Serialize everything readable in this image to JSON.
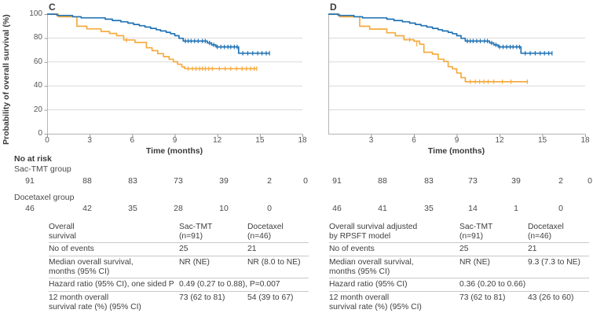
{
  "figure": {
    "y_axis_label": "Probability of overall survival (%)",
    "x_axis_label": "Time (months)",
    "colors": {
      "sac_tmt_line": "#2173b5",
      "docetaxel_line": "#f6ab3f",
      "gridline": "#dadada",
      "axis": "#b5b5b5",
      "tick_text": "#555555",
      "table_rule": "#c9c9c9"
    }
  },
  "chart_data": [
    {
      "type": "line",
      "subtype": "kaplan-meier-step",
      "panel": "C",
      "ylabel": "Probability of overall survival (%)",
      "xlabel": "Time (months)",
      "ylim": [
        0,
        100
      ],
      "xlim": [
        0,
        18
      ],
      "yticks": [
        100,
        80,
        60,
        40,
        20,
        0
      ],
      "xticks": [
        0,
        3,
        6,
        9,
        12,
        15,
        18
      ],
      "grid": "horizontal",
      "series": [
        {
          "name": "Sac-TMT",
          "color": "#2173b5",
          "steps": [
            [
              0,
              100
            ],
            [
              0.7,
              98.9
            ],
            [
              1.8,
              97.8
            ],
            [
              2.4,
              96.9
            ],
            [
              4.1,
              95.8
            ],
            [
              4.6,
              94.7
            ],
            [
              5.2,
              93.6
            ],
            [
              5.7,
              92.5
            ],
            [
              6.1,
              91.4
            ],
            [
              6.5,
              90.3
            ],
            [
              6.9,
              89.2
            ],
            [
              7.3,
              88.1
            ],
            [
              7.7,
              87.0
            ],
            [
              8.0,
              85.9
            ],
            [
              8.4,
              84.8
            ],
            [
              8.7,
              83.7
            ],
            [
              9.0,
              82.0
            ],
            [
              9.3,
              79.8
            ],
            [
              9.6,
              77.5
            ],
            [
              11.3,
              75.9
            ],
            [
              11.6,
              74.3
            ],
            [
              11.9,
              72.6
            ],
            [
              13.5,
              67.3
            ],
            [
              15.7,
              67.3
            ]
          ],
          "censors": [
            [
              9.75,
              77.5
            ],
            [
              9.95,
              77.5
            ],
            [
              10.15,
              77.5
            ],
            [
              10.4,
              77.5
            ],
            [
              10.65,
              77.5
            ],
            [
              10.95,
              77.5
            ],
            [
              11.15,
              77.5
            ],
            [
              11.45,
              75.9
            ],
            [
              11.75,
              74.3
            ],
            [
              12.0,
              72.6
            ],
            [
              12.25,
              72.6
            ],
            [
              12.5,
              72.6
            ],
            [
              12.75,
              72.6
            ],
            [
              12.95,
              72.6
            ],
            [
              13.2,
              72.6
            ],
            [
              13.4,
              72.6
            ],
            [
              13.8,
              67.3
            ],
            [
              14.15,
              67.3
            ],
            [
              14.5,
              67.3
            ],
            [
              14.85,
              67.3
            ],
            [
              15.15,
              67.3
            ],
            [
              15.45,
              67.3
            ],
            [
              15.68,
              67.3
            ]
          ]
        },
        {
          "name": "Docetaxel",
          "color": "#f6ab3f",
          "steps": [
            [
              0,
              100
            ],
            [
              0.8,
              97.8
            ],
            [
              2.1,
              89.9
            ],
            [
              2.8,
              87.7
            ],
            [
              3.8,
              85.5
            ],
            [
              4.4,
              83.9
            ],
            [
              4.9,
              82.0
            ],
            [
              5.4,
              78.4
            ],
            [
              6.2,
              76.3
            ],
            [
              7.0,
              71.9
            ],
            [
              7.4,
              69.5
            ],
            [
              7.8,
              67.0
            ],
            [
              8.2,
              64.5
            ],
            [
              8.6,
              62.3
            ],
            [
              8.9,
              60.2
            ],
            [
              9.2,
              58.1
            ],
            [
              9.5,
              55.9
            ],
            [
              9.7,
              54.4
            ],
            [
              14.8,
              54.4
            ]
          ],
          "censors": [
            [
              5.6,
              78.4
            ],
            [
              9.95,
              54.4
            ],
            [
              10.25,
              54.4
            ],
            [
              10.5,
              54.4
            ],
            [
              10.75,
              54.4
            ],
            [
              10.95,
              54.4
            ],
            [
              11.15,
              54.4
            ],
            [
              11.4,
              54.4
            ],
            [
              11.65,
              54.4
            ],
            [
              12.15,
              54.4
            ],
            [
              12.55,
              54.4
            ],
            [
              12.95,
              54.4
            ],
            [
              13.35,
              54.4
            ],
            [
              13.75,
              54.4
            ],
            [
              14.05,
              54.4
            ],
            [
              14.35,
              54.4
            ],
            [
              14.6,
              54.4
            ],
            [
              14.78,
              54.4
            ]
          ]
        }
      ]
    },
    {
      "type": "line",
      "subtype": "kaplan-meier-step",
      "panel": "D",
      "ylabel": "Probability of overall survival (%)",
      "xlabel": "Time (months)",
      "ylim": [
        0,
        100
      ],
      "xlim": [
        0,
        18
      ],
      "yticks": [
        100,
        80,
        60,
        40,
        20,
        0
      ],
      "xticks": [
        3,
        6,
        9,
        12,
        15,
        18
      ],
      "grid": "horizontal",
      "series": [
        {
          "name": "Sac-TMT",
          "color": "#2173b5",
          "steps": [
            [
              0,
              100
            ],
            [
              0.7,
              98.9
            ],
            [
              1.8,
              97.8
            ],
            [
              2.4,
              96.9
            ],
            [
              4.1,
              95.8
            ],
            [
              4.6,
              94.7
            ],
            [
              5.2,
              93.6
            ],
            [
              5.7,
              92.5
            ],
            [
              6.1,
              91.4
            ],
            [
              6.5,
              90.3
            ],
            [
              6.9,
              89.2
            ],
            [
              7.3,
              88.1
            ],
            [
              7.7,
              87.0
            ],
            [
              8.0,
              85.9
            ],
            [
              8.4,
              84.8
            ],
            [
              8.7,
              83.7
            ],
            [
              9.0,
              82.0
            ],
            [
              9.3,
              79.8
            ],
            [
              9.6,
              77.5
            ],
            [
              11.3,
              75.9
            ],
            [
              11.6,
              74.3
            ],
            [
              11.9,
              72.6
            ],
            [
              13.5,
              67.3
            ],
            [
              15.7,
              67.3
            ]
          ],
          "censors": [
            [
              9.75,
              77.5
            ],
            [
              9.95,
              77.5
            ],
            [
              10.15,
              77.5
            ],
            [
              10.4,
              77.5
            ],
            [
              10.65,
              77.5
            ],
            [
              10.95,
              77.5
            ],
            [
              11.15,
              77.5
            ],
            [
              11.45,
              75.9
            ],
            [
              11.75,
              74.3
            ],
            [
              12.0,
              72.6
            ],
            [
              12.25,
              72.6
            ],
            [
              12.5,
              72.6
            ],
            [
              12.75,
              72.6
            ],
            [
              12.95,
              72.6
            ],
            [
              13.2,
              72.6
            ],
            [
              13.4,
              72.6
            ],
            [
              13.8,
              67.3
            ],
            [
              14.15,
              67.3
            ],
            [
              14.5,
              67.3
            ],
            [
              14.85,
              67.3
            ],
            [
              15.15,
              67.3
            ],
            [
              15.45,
              67.3
            ],
            [
              15.68,
              67.3
            ]
          ]
        },
        {
          "name": "Docetaxel",
          "color": "#f6ab3f",
          "steps": [
            [
              0,
              100
            ],
            [
              0.8,
              97.8
            ],
            [
              2.2,
              89.9
            ],
            [
              2.9,
              87.5
            ],
            [
              4.1,
              84.4
            ],
            [
              4.7,
              81.9
            ],
            [
              5.3,
              78.6
            ],
            [
              6.0,
              77.4
            ],
            [
              6.4,
              74.9
            ],
            [
              6.7,
              68.1
            ],
            [
              7.3,
              66.5
            ],
            [
              7.7,
              62.3
            ],
            [
              8.1,
              60.4
            ],
            [
              8.4,
              56.1
            ],
            [
              8.7,
              54.3
            ],
            [
              9.0,
              50.8
            ],
            [
              9.3,
              46.9
            ],
            [
              9.6,
              43.5
            ],
            [
              14.0,
              43.5
            ]
          ],
          "censors": [
            [
              5.7,
              78.6
            ],
            [
              6.2,
              74.9
            ],
            [
              9.95,
              43.5
            ],
            [
              10.3,
              43.5
            ],
            [
              10.6,
              43.5
            ],
            [
              10.9,
              43.5
            ],
            [
              11.2,
              43.5
            ],
            [
              11.6,
              43.5
            ],
            [
              12.2,
              43.5
            ],
            [
              12.8,
              43.5
            ],
            [
              13.95,
              43.5
            ]
          ]
        }
      ]
    }
  ],
  "no_at_risk": {
    "label": "No at risk",
    "groups": [
      {
        "label": "Sac-TMT group",
        "panel_c": [
          "91",
          "88",
          "83",
          "73",
          "39",
          "2",
          "0"
        ],
        "panel_d": [
          "91",
          "88",
          "83",
          "73",
          "39",
          "2",
          "0"
        ]
      },
      {
        "label": "Docetaxel group",
        "panel_c": [
          "46",
          "42",
          "35",
          "28",
          "10",
          "0",
          ""
        ],
        "panel_d": [
          "46",
          "41",
          "35",
          "14",
          "1",
          "0",
          ""
        ]
      }
    ]
  },
  "tables": [
    {
      "header": {
        "label": "Overall\nsurvival",
        "col1": "Sac-TMT\n(n=91)",
        "col2": "Docetaxel\n(n=46)"
      },
      "rows": [
        {
          "label": "No of events",
          "col1": "25",
          "col2": "21"
        },
        {
          "label": "Median overall survival,\nmonths (95% CI)",
          "col1": "NR (NE)",
          "col2": "NR (8.0 to NE)"
        },
        {
          "label": "Hazard ratio (95% CI), one sided P",
          "span": "0.49 (0.27 to 0.88), P=0.007"
        },
        {
          "label": "12 month overall\nsurvival rate (%) (95% CI)",
          "col1": "73 (62 to 81)",
          "col2": "54 (39 to 67)"
        }
      ]
    },
    {
      "header": {
        "label": "Overall survival adjusted\nby RPSFT model",
        "col1": "Sac-TMT\n(n=91)",
        "col2": "Docetaxel\n(n=46)"
      },
      "rows": [
        {
          "label": "No of events",
          "col1": "25",
          "col2": "21"
        },
        {
          "label": "Median overall survival,\nmonths (95% CI)",
          "col1": "NR (NE)",
          "col2": "9.3 (7.3 to NE)"
        },
        {
          "label": "Hazard ratio (95% CI)",
          "span": "0.36 (0.20 to 0.66)"
        },
        {
          "label": "12 month overall\nsurvival rate (%) (95% CI)",
          "col1": "73 (62 to 81)",
          "col2": "43 (26 to 60)"
        }
      ]
    }
  ]
}
